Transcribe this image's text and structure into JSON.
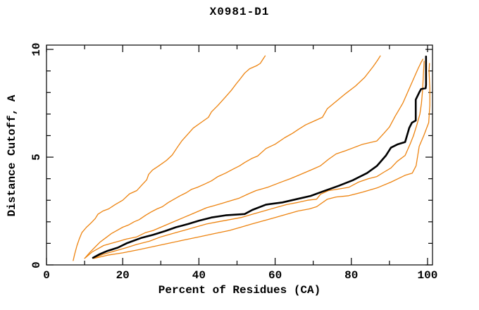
{
  "title": "X0981-D1",
  "chart_data": {
    "type": "line",
    "title": "X0981-D1",
    "xlabel": "Percent of Residues (CA)",
    "ylabel": "Distance Cutoff, A",
    "xlim": [
      0,
      101.3
    ],
    "ylim": [
      0,
      10.2
    ],
    "x_major_ticks": [
      0,
      20,
      40,
      60,
      80,
      100
    ],
    "x_minor_ticks": [
      10,
      30,
      50,
      70,
      90
    ],
    "y_major_ticks": [
      0,
      5,
      10
    ],
    "y_minor_ticks": [
      1,
      2,
      3,
      4,
      6,
      7,
      8,
      9
    ],
    "grid": false,
    "legend_position": "none",
    "background_color": "#ffffff",
    "frame_color": "#000000",
    "accent_color": "#ED830F",
    "model_color": "#000000",
    "series": [
      {
        "name": "orange-curve-1",
        "color": "#ED830F",
        "width": 1.3,
        "points": [
          [
            7,
            0.2
          ],
          [
            7.4,
            0.5
          ],
          [
            8,
            0.9
          ],
          [
            8.6,
            1.2
          ],
          [
            9.3,
            1.5
          ],
          [
            10.5,
            1.75
          ],
          [
            11.7,
            1.95
          ],
          [
            12.8,
            2.15
          ],
          [
            13.5,
            2.35
          ],
          [
            14.8,
            2.5
          ],
          [
            16.3,
            2.6
          ],
          [
            18,
            2.8
          ],
          [
            20,
            3.0
          ],
          [
            21.8,
            3.3
          ],
          [
            23.7,
            3.45
          ],
          [
            25,
            3.7
          ],
          [
            26.3,
            3.95
          ],
          [
            26.8,
            4.2
          ],
          [
            27.8,
            4.4
          ],
          [
            29.5,
            4.6
          ],
          [
            31.5,
            4.85
          ],
          [
            33,
            5.1
          ],
          [
            34.3,
            5.45
          ],
          [
            35.5,
            5.75
          ],
          [
            37,
            6.05
          ],
          [
            38.5,
            6.35
          ],
          [
            40.5,
            6.6
          ],
          [
            42.5,
            6.85
          ],
          [
            43.3,
            7.1
          ],
          [
            45,
            7.4
          ],
          [
            47,
            7.8
          ],
          [
            48.5,
            8.1
          ],
          [
            50,
            8.45
          ],
          [
            50.7,
            8.6
          ],
          [
            52,
            8.9
          ],
          [
            53.3,
            9.1
          ],
          [
            55.2,
            9.25
          ],
          [
            56.1,
            9.35
          ],
          [
            57,
            9.6
          ],
          [
            57.4,
            9.7
          ]
        ]
      },
      {
        "name": "orange-curve-2",
        "color": "#ED830F",
        "width": 1.3,
        "points": [
          [
            10,
            0.3
          ],
          [
            11.5,
            0.6
          ],
          [
            12.6,
            0.8
          ],
          [
            14,
            1.05
          ],
          [
            15.5,
            1.25
          ],
          [
            17,
            1.45
          ],
          [
            18.5,
            1.6
          ],
          [
            20,
            1.75
          ],
          [
            21.5,
            1.85
          ],
          [
            23,
            2.0
          ],
          [
            24.3,
            2.1
          ],
          [
            26,
            2.3
          ],
          [
            27.4,
            2.45
          ],
          [
            29,
            2.6
          ],
          [
            30.4,
            2.7
          ],
          [
            32,
            2.9
          ],
          [
            33.5,
            3.05
          ],
          [
            35,
            3.2
          ],
          [
            36.7,
            3.35
          ],
          [
            38,
            3.5
          ],
          [
            39.6,
            3.6
          ],
          [
            41.5,
            3.75
          ],
          [
            43.3,
            3.9
          ],
          [
            45,
            4.1
          ],
          [
            47,
            4.26
          ],
          [
            49,
            4.45
          ],
          [
            50.7,
            4.6
          ],
          [
            52,
            4.75
          ],
          [
            54,
            4.95
          ],
          [
            55.4,
            5.05
          ],
          [
            57.6,
            5.4
          ],
          [
            60,
            5.6
          ],
          [
            62.5,
            5.9
          ],
          [
            64.5,
            6.1
          ],
          [
            66.2,
            6.3
          ],
          [
            68,
            6.5
          ],
          [
            69.9,
            6.65
          ],
          [
            72.4,
            6.85
          ],
          [
            73.7,
            7.25
          ],
          [
            76.1,
            7.6
          ],
          [
            78.5,
            7.95
          ],
          [
            81.1,
            8.3
          ],
          [
            83.5,
            8.7
          ],
          [
            85.7,
            9.2
          ],
          [
            86.9,
            9.5
          ],
          [
            87.6,
            9.7
          ]
        ]
      },
      {
        "name": "orange-curve-3",
        "color": "#ED830F",
        "width": 1.3,
        "points": [
          [
            10.2,
            0.33
          ],
          [
            12,
            0.6
          ],
          [
            13.5,
            0.75
          ],
          [
            15,
            0.9
          ],
          [
            17,
            1.0
          ],
          [
            19,
            1.1
          ],
          [
            21,
            1.2
          ],
          [
            23.7,
            1.3
          ],
          [
            26,
            1.5
          ],
          [
            28,
            1.6
          ],
          [
            30,
            1.75
          ],
          [
            32,
            1.9
          ],
          [
            34,
            2.05
          ],
          [
            36,
            2.2
          ],
          [
            38,
            2.35
          ],
          [
            40,
            2.5
          ],
          [
            42,
            2.65
          ],
          [
            44,
            2.75
          ],
          [
            46,
            2.85
          ],
          [
            47.8,
            2.95
          ],
          [
            50.6,
            3.1
          ],
          [
            53,
            3.3
          ],
          [
            55,
            3.45
          ],
          [
            58,
            3.6
          ],
          [
            61.7,
            3.85
          ],
          [
            64,
            4.0
          ],
          [
            66,
            4.15
          ],
          [
            68,
            4.3
          ],
          [
            70,
            4.45
          ],
          [
            71.9,
            4.6
          ],
          [
            74,
            4.9
          ],
          [
            76,
            5.15
          ],
          [
            78.5,
            5.3
          ],
          [
            80,
            5.4
          ],
          [
            83,
            5.6
          ],
          [
            86.7,
            5.75
          ],
          [
            88.5,
            6.1
          ],
          [
            90,
            6.4
          ],
          [
            91.5,
            6.9
          ],
          [
            92.5,
            7.2
          ],
          [
            93.5,
            7.5
          ],
          [
            94.5,
            7.9
          ],
          [
            95.5,
            8.3
          ],
          [
            96.5,
            8.7
          ],
          [
            97.5,
            9.1
          ],
          [
            98.3,
            9.4
          ],
          [
            98.8,
            9.55
          ]
        ]
      },
      {
        "name": "orange-curve-4",
        "color": "#ED830F",
        "width": 1.3,
        "points": [
          [
            12.2,
            0.3
          ],
          [
            15,
            0.5
          ],
          [
            18,
            0.65
          ],
          [
            21,
            0.8
          ],
          [
            23.7,
            0.95
          ],
          [
            27,
            1.1
          ],
          [
            30,
            1.3
          ],
          [
            33,
            1.45
          ],
          [
            36,
            1.6
          ],
          [
            39,
            1.75
          ],
          [
            42,
            1.9
          ],
          [
            45,
            2.0
          ],
          [
            48,
            2.1
          ],
          [
            51.1,
            2.2
          ],
          [
            54,
            2.35
          ],
          [
            57,
            2.5
          ],
          [
            60,
            2.65
          ],
          [
            63,
            2.8
          ],
          [
            66,
            2.9
          ],
          [
            68.5,
            3.0
          ],
          [
            70.9,
            3.05
          ],
          [
            71.9,
            3.28
          ],
          [
            74,
            3.45
          ],
          [
            76,
            3.5
          ],
          [
            79.3,
            3.6
          ],
          [
            82,
            3.85
          ],
          [
            84.5,
            4.0
          ],
          [
            86.7,
            4.1
          ],
          [
            88.5,
            4.3
          ],
          [
            90.4,
            4.5
          ],
          [
            92,
            4.8
          ],
          [
            94.1,
            5.08
          ],
          [
            95.4,
            5.6
          ],
          [
            96.3,
            6.0
          ],
          [
            97.2,
            6.5
          ],
          [
            98,
            7.0
          ],
          [
            98.4,
            7.5
          ],
          [
            98.7,
            8.1
          ],
          [
            98.9,
            8.8
          ],
          [
            99.1,
            9.45
          ]
        ]
      },
      {
        "name": "orange-curve-5",
        "color": "#ED830F",
        "width": 1.3,
        "points": [
          [
            12.5,
            0.3
          ],
          [
            16,
            0.45
          ],
          [
            20,
            0.56
          ],
          [
            24,
            0.7
          ],
          [
            28,
            0.85
          ],
          [
            32,
            1.0
          ],
          [
            36,
            1.15
          ],
          [
            40,
            1.3
          ],
          [
            44,
            1.45
          ],
          [
            48,
            1.6
          ],
          [
            51,
            1.75
          ],
          [
            53.9,
            1.9
          ],
          [
            57,
            2.05
          ],
          [
            60,
            2.2
          ],
          [
            63,
            2.35
          ],
          [
            66,
            2.5
          ],
          [
            69,
            2.6
          ],
          [
            70.9,
            2.7
          ],
          [
            73.7,
            3.05
          ],
          [
            76,
            3.15
          ],
          [
            79.3,
            3.21
          ],
          [
            83,
            3.38
          ],
          [
            86.7,
            3.57
          ],
          [
            90.4,
            3.84
          ],
          [
            94.1,
            4.16
          ],
          [
            96,
            4.26
          ],
          [
            97,
            4.6
          ],
          [
            97.8,
            5.5
          ],
          [
            99,
            6.0
          ],
          [
            100.3,
            6.6
          ],
          [
            100.6,
            7.4
          ],
          [
            100.6,
            8.2
          ],
          [
            100.4,
            9.0
          ],
          [
            100.5,
            9.35
          ]
        ]
      },
      {
        "name": "black-model-curve",
        "color": "#000000",
        "width": 2.6,
        "points": [
          [
            12.2,
            0.33
          ],
          [
            14,
            0.5
          ],
          [
            16,
            0.65
          ],
          [
            18.7,
            0.8
          ],
          [
            21,
            1.0
          ],
          [
            24.8,
            1.25
          ],
          [
            28,
            1.4
          ],
          [
            31.1,
            1.57
          ],
          [
            34,
            1.75
          ],
          [
            37.2,
            1.9
          ],
          [
            40,
            2.05
          ],
          [
            43.3,
            2.2
          ],
          [
            47,
            2.3
          ],
          [
            52,
            2.36
          ],
          [
            54,
            2.55
          ],
          [
            57.6,
            2.8
          ],
          [
            61.9,
            2.9
          ],
          [
            65.6,
            3.05
          ],
          [
            69.3,
            3.2
          ],
          [
            73,
            3.44
          ],
          [
            76.7,
            3.67
          ],
          [
            80.4,
            3.93
          ],
          [
            84.1,
            4.26
          ],
          [
            86.7,
            4.59
          ],
          [
            89.1,
            5.08
          ],
          [
            90.4,
            5.44
          ],
          [
            92.2,
            5.6
          ],
          [
            94.1,
            5.7
          ],
          [
            95.2,
            6.36
          ],
          [
            95.9,
            6.6
          ],
          [
            96.9,
            6.7
          ],
          [
            96.9,
            7.67
          ],
          [
            97.8,
            8.0
          ],
          [
            98.3,
            8.16
          ],
          [
            99.5,
            8.2
          ],
          [
            99.6,
            8.35
          ],
          [
            99.6,
            9.67
          ]
        ]
      }
    ]
  }
}
